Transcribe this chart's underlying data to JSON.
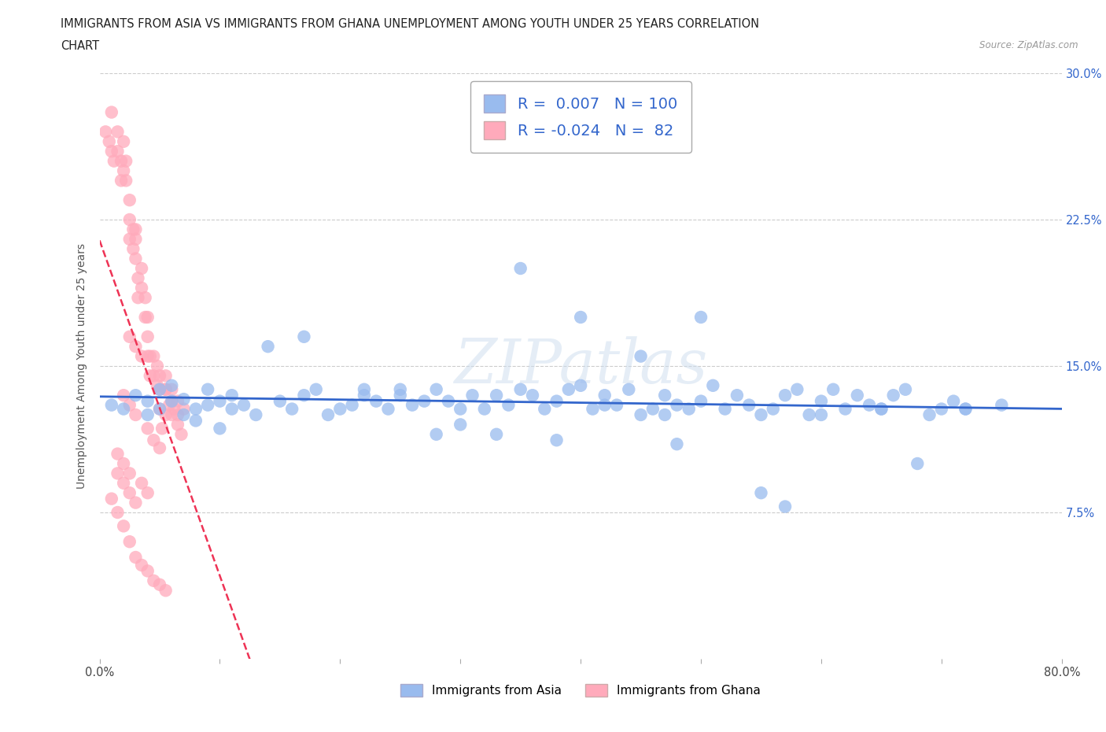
{
  "title_line1": "IMMIGRANTS FROM ASIA VS IMMIGRANTS FROM GHANA UNEMPLOYMENT AMONG YOUTH UNDER 25 YEARS CORRELATION",
  "title_line2": "CHART",
  "source": "Source: ZipAtlas.com",
  "ylabel": "Unemployment Among Youth under 25 years",
  "xlim": [
    0.0,
    0.8
  ],
  "ylim": [
    0.0,
    0.3
  ],
  "R_asia": 0.007,
  "N_asia": 100,
  "R_ghana": -0.024,
  "N_ghana": 82,
  "color_asia": "#99BBEE",
  "color_ghana": "#FFAABB",
  "trendline_color_asia": "#3366CC",
  "trendline_color_ghana": "#EE3355",
  "legend_label_asia": "Immigrants from Asia",
  "legend_label_ghana": "Immigrants from Ghana",
  "asia_x": [
    0.01,
    0.02,
    0.03,
    0.04,
    0.04,
    0.05,
    0.05,
    0.06,
    0.06,
    0.07,
    0.07,
    0.08,
    0.08,
    0.09,
    0.09,
    0.1,
    0.1,
    0.11,
    0.11,
    0.12,
    0.13,
    0.14,
    0.15,
    0.16,
    0.17,
    0.18,
    0.19,
    0.2,
    0.21,
    0.22,
    0.23,
    0.24,
    0.25,
    0.26,
    0.27,
    0.28,
    0.29,
    0.3,
    0.31,
    0.32,
    0.33,
    0.34,
    0.35,
    0.36,
    0.37,
    0.38,
    0.39,
    0.4,
    0.41,
    0.42,
    0.43,
    0.44,
    0.45,
    0.46,
    0.47,
    0.48,
    0.49,
    0.5,
    0.51,
    0.52,
    0.53,
    0.54,
    0.55,
    0.56,
    0.57,
    0.58,
    0.59,
    0.6,
    0.61,
    0.62,
    0.63,
    0.64,
    0.65,
    0.66,
    0.67,
    0.68,
    0.69,
    0.7,
    0.71,
    0.72,
    0.25,
    0.3,
    0.35,
    0.4,
    0.45,
    0.5,
    0.17,
    0.22,
    0.28,
    0.33,
    0.38,
    0.42,
    0.48,
    0.55,
    0.6,
    0.65,
    0.72,
    0.75,
    0.47,
    0.57
  ],
  "asia_y": [
    0.13,
    0.128,
    0.135,
    0.132,
    0.125,
    0.138,
    0.128,
    0.132,
    0.14,
    0.125,
    0.133,
    0.128,
    0.122,
    0.13,
    0.138,
    0.132,
    0.118,
    0.135,
    0.128,
    0.13,
    0.125,
    0.16,
    0.132,
    0.128,
    0.135,
    0.138,
    0.125,
    0.128,
    0.13,
    0.135,
    0.132,
    0.128,
    0.135,
    0.13,
    0.132,
    0.138,
    0.132,
    0.128,
    0.135,
    0.128,
    0.135,
    0.13,
    0.138,
    0.135,
    0.128,
    0.132,
    0.138,
    0.14,
    0.128,
    0.135,
    0.13,
    0.138,
    0.125,
    0.128,
    0.135,
    0.13,
    0.128,
    0.132,
    0.14,
    0.128,
    0.135,
    0.13,
    0.125,
    0.128,
    0.135,
    0.138,
    0.125,
    0.132,
    0.138,
    0.128,
    0.135,
    0.13,
    0.128,
    0.135,
    0.138,
    0.1,
    0.125,
    0.128,
    0.132,
    0.128,
    0.138,
    0.12,
    0.2,
    0.175,
    0.155,
    0.175,
    0.165,
    0.138,
    0.115,
    0.115,
    0.112,
    0.13,
    0.11,
    0.085,
    0.125,
    0.128,
    0.128,
    0.13,
    0.125,
    0.078
  ],
  "ghana_x": [
    0.005,
    0.008,
    0.01,
    0.01,
    0.012,
    0.015,
    0.015,
    0.018,
    0.018,
    0.02,
    0.02,
    0.022,
    0.022,
    0.025,
    0.025,
    0.025,
    0.028,
    0.028,
    0.03,
    0.03,
    0.03,
    0.032,
    0.032,
    0.035,
    0.035,
    0.038,
    0.038,
    0.04,
    0.04,
    0.04,
    0.042,
    0.042,
    0.045,
    0.045,
    0.048,
    0.048,
    0.05,
    0.05,
    0.05,
    0.052,
    0.055,
    0.055,
    0.058,
    0.06,
    0.06,
    0.062,
    0.065,
    0.065,
    0.068,
    0.07,
    0.01,
    0.015,
    0.02,
    0.025,
    0.03,
    0.035,
    0.04,
    0.045,
    0.05,
    0.055,
    0.025,
    0.03,
    0.035,
    0.02,
    0.025,
    0.03,
    0.04,
    0.045,
    0.05,
    0.015,
    0.02,
    0.025,
    0.03,
    0.015,
    0.02,
    0.025,
    0.035,
    0.04,
    0.055,
    0.055,
    0.06,
    0.065
  ],
  "ghana_y": [
    0.27,
    0.265,
    0.28,
    0.26,
    0.255,
    0.27,
    0.26,
    0.255,
    0.245,
    0.265,
    0.25,
    0.255,
    0.245,
    0.235,
    0.225,
    0.215,
    0.22,
    0.21,
    0.22,
    0.215,
    0.205,
    0.195,
    0.185,
    0.2,
    0.19,
    0.185,
    0.175,
    0.175,
    0.165,
    0.155,
    0.155,
    0.145,
    0.155,
    0.145,
    0.15,
    0.14,
    0.145,
    0.138,
    0.128,
    0.118,
    0.138,
    0.125,
    0.13,
    0.138,
    0.125,
    0.128,
    0.132,
    0.12,
    0.115,
    0.128,
    0.082,
    0.075,
    0.068,
    0.06,
    0.052,
    0.048,
    0.045,
    0.04,
    0.038,
    0.035,
    0.165,
    0.16,
    0.155,
    0.135,
    0.13,
    0.125,
    0.118,
    0.112,
    0.108,
    0.095,
    0.09,
    0.085,
    0.08,
    0.105,
    0.1,
    0.095,
    0.09,
    0.085,
    0.145,
    0.138,
    0.132,
    0.125
  ]
}
